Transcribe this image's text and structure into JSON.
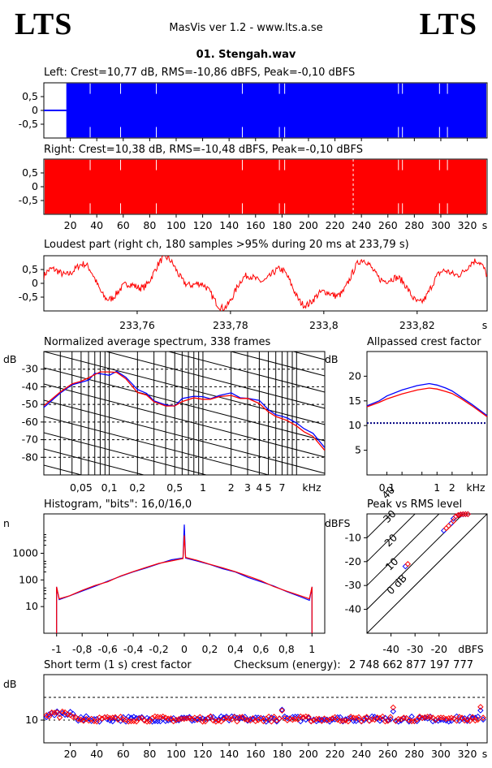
{
  "header": {
    "logo_left": "LTS",
    "logo_right": "LTS",
    "app_title": "MasVis ver 1.2 - www.lts.a.se",
    "file_name": "01. Stengah.wav"
  },
  "colors": {
    "left_channel": "#0000ff",
    "right_channel": "#ff0000",
    "reference_line": "#000080"
  },
  "chart_data": [
    {
      "id": "left",
      "type": "area",
      "title": "Left: Crest=10,77 dB, RMS=-10,86 dBFS, Peak=-0,10 dBFS",
      "ytick_labels": [
        "0,5",
        "0",
        "-0,5"
      ],
      "yticks": [
        0.5,
        0,
        -0.5
      ],
      "ylim": [
        -1,
        1
      ],
      "xlim": [
        0,
        335
      ],
      "signal_start_s": 17
    },
    {
      "id": "right",
      "type": "area",
      "title": "Right: Crest=10,38 dB, RMS=-10,48 dBFS, Peak=-0,10 dBFS",
      "ytick_labels": [
        "0,5",
        "0",
        "-0,5"
      ],
      "yticks": [
        0.5,
        0,
        -0.5
      ],
      "ylim": [
        -1,
        1
      ],
      "xlim": [
        0,
        335
      ],
      "marker_s": 233.79,
      "xtick_labels": [
        "20",
        "40",
        "60",
        "80",
        "100",
        "120",
        "140",
        "160",
        "180",
        "200",
        "220",
        "240",
        "260",
        "280",
        "300",
        "320",
        "s"
      ]
    },
    {
      "id": "loudest",
      "type": "line",
      "title": "Loudest part (right ch, 180 samples >95% during 20 ms at 233,79 s)",
      "xlim": [
        233.74,
        233.835
      ],
      "ylim": [
        -1,
        1
      ],
      "ytick_labels": [
        "0,5",
        "0",
        "-0,5"
      ],
      "yticks": [
        0.5,
        0,
        -0.5
      ],
      "xticks": [
        233.76,
        233.78,
        233.8,
        233.82
      ],
      "xtick_labels": [
        "233,76",
        "233,78",
        "233,8",
        "233,82",
        "s"
      ]
    },
    {
      "id": "spectrum",
      "type": "line",
      "title": "Normalized average spectrum, 338 frames",
      "ylabel": "dB",
      "ylim": [
        -90,
        -20
      ],
      "yticks": [
        -30,
        -40,
        -50,
        -60,
        -70,
        -80
      ],
      "ytick_labels": [
        "-30",
        "-40",
        "-50",
        "-60",
        "-70",
        "-80"
      ],
      "xscale": "log",
      "xlim": [
        0.02,
        20
      ],
      "xticks": [
        0.05,
        0.1,
        0.2,
        0.5,
        1,
        2,
        3,
        4,
        5,
        7
      ],
      "xtick_labels": [
        "0,05",
        "0,1",
        "0,2",
        "0,5",
        "1",
        "2",
        "3",
        "4",
        "5",
        "7",
        "kHz"
      ],
      "x": [
        0.02,
        0.03,
        0.04,
        0.05,
        0.06,
        0.07,
        0.08,
        0.1,
        0.12,
        0.15,
        0.2,
        0.25,
        0.3,
        0.4,
        0.5,
        0.6,
        0.8,
        1,
        1.2,
        1.5,
        2,
        2.5,
        3,
        4,
        5,
        6,
        7,
        8,
        10,
        12,
        15,
        20
      ],
      "series": [
        {
          "values": [
            -52,
            -44,
            -39,
            -38,
            -36,
            -33,
            -32,
            -33,
            -31,
            -35,
            -42,
            -44,
            -48,
            -50,
            -51,
            -47,
            -45,
            -46,
            -47,
            -45,
            -44,
            -46,
            -46,
            -48,
            -53,
            -56,
            -57,
            -58,
            -60,
            -64,
            -67,
            -75
          ]
        },
        {
          "values": [
            -51,
            -43,
            -38,
            -37,
            -35,
            -33,
            -31,
            -32,
            -32,
            -36,
            -43,
            -45,
            -49,
            -51,
            -51,
            -48,
            -46,
            -47,
            -47,
            -45,
            -45,
            -47,
            -47,
            -49,
            -54,
            -57,
            -58,
            -59,
            -62,
            -65,
            -68,
            -76
          ]
        }
      ]
    },
    {
      "id": "crest",
      "type": "line",
      "title": "Allpassed crest factor",
      "ylabel": "dB",
      "ylim": [
        0,
        25
      ],
      "yticks": [
        5,
        10,
        15,
        20
      ],
      "ytick_labels": [
        "5",
        "10",
        "15",
        "20"
      ],
      "xscale": "log",
      "xlim": [
        0.04,
        10
      ],
      "xticks": [
        0.1,
        1,
        2
      ],
      "xtick_labels": [
        "0,1",
        "1",
        "2",
        "kHz"
      ],
      "reference_db": 10.5,
      "x": [
        0.04,
        0.07,
        0.1,
        0.2,
        0.4,
        0.7,
        1,
        1.5,
        2,
        3,
        5,
        10
      ],
      "series": [
        {
          "values": [
            14,
            15,
            16,
            17.2,
            18.1,
            18.5,
            18.2,
            17.6,
            17,
            15.8,
            14.3,
            12
          ]
        },
        {
          "values": [
            13.8,
            14.7,
            15.4,
            16.4,
            17.2,
            17.6,
            17.4,
            16.9,
            16.5,
            15.5,
            14,
            11.8
          ]
        }
      ]
    },
    {
      "id": "histogram",
      "type": "line",
      "title": "Histogram, \"bits\": 16,0/16,0",
      "ylabel": "n",
      "yscale": "log",
      "ylim": [
        1,
        30000
      ],
      "yticks": [
        10,
        100,
        1000
      ],
      "ytick_labels": [
        "10",
        "100",
        "1000"
      ],
      "xlim": [
        -1.1,
        1.1
      ],
      "xticks": [
        -1,
        -0.8,
        -0.6,
        -0.4,
        -0.2,
        0,
        0.2,
        0.4,
        0.6,
        0.8,
        1
      ],
      "xtick_labels": [
        "-1",
        "-0,8",
        "-0,6",
        "-0,4",
        "-0,2",
        "0",
        "0,2",
        "0,4",
        "0,6",
        "0,8",
        "1"
      ],
      "x": [
        -0.98,
        -0.9,
        -0.8,
        -0.7,
        -0.6,
        -0.5,
        -0.4,
        -0.3,
        -0.2,
        -0.1,
        -0.01,
        0,
        0.01,
        0.1,
        0.2,
        0.3,
        0.4,
        0.5,
        0.6,
        0.7,
        0.8,
        0.9,
        0.98
      ],
      "series": [
        {
          "values": [
            18,
            25,
            38,
            58,
            88,
            130,
            190,
            280,
            390,
            540,
            650,
            12000,
            650,
            540,
            390,
            280,
            190,
            130,
            88,
            58,
            38,
            25,
            18
          ]
        },
        {
          "values": [
            19,
            26,
            40,
            60,
            90,
            135,
            195,
            285,
            395,
            545,
            660,
            5000,
            660,
            545,
            395,
            285,
            195,
            135,
            90,
            60,
            40,
            26,
            19
          ]
        }
      ],
      "edge_spike_value": 55
    },
    {
      "id": "peak_vs_rms",
      "type": "scatter",
      "title": "Peak vs RMS level",
      "ylabel": "dBFS",
      "xlabel": "dBFS",
      "xlim": [
        -50,
        0
      ],
      "ylim": [
        -50,
        0
      ],
      "yticks": [
        -10,
        -20,
        -30,
        -40
      ],
      "ytick_labels": [
        "-10",
        "-20",
        "-30",
        "-40"
      ],
      "xticks": [
        -40,
        -30,
        -20
      ],
      "xtick_labels": [
        "-40",
        "-30",
        "-20",
        "dBFS"
      ],
      "crest_lines": [
        0,
        10,
        20,
        30,
        40
      ],
      "crest_labels": [
        "0 dB",
        "10",
        "20",
        "30",
        "40"
      ],
      "series": [
        {
          "x": [
            -34,
            -18,
            -15,
            -14,
            -13,
            -12,
            -11,
            -10,
            -9,
            -8
          ],
          "y": [
            -22,
            -7,
            -4,
            -2,
            -1,
            -0.5,
            -0.3,
            -0.2,
            -0.1,
            -0.1
          ]
        },
        {
          "x": [
            -33,
            -17,
            -16,
            -14,
            -13,
            -12,
            -11,
            -10,
            -9,
            -8
          ],
          "y": [
            -21,
            -6,
            -5,
            -3,
            -1,
            -0.5,
            -0.2,
            -0.1,
            -0.1,
            -0.1
          ]
        }
      ]
    },
    {
      "id": "short_term_crest",
      "type": "scatter",
      "title": "Short term (1 s) crest factor",
      "checksum_label": "Checksum (energy):",
      "checksum_value": "2 748 662 877 197 777",
      "ylabel": "dB",
      "ylim": [
        0,
        30
      ],
      "yticks": [
        10
      ],
      "ytick_labels": [
        "10"
      ],
      "xlim": [
        0,
        335
      ],
      "reference_db": 20,
      "xtick_labels": [
        "20",
        "40",
        "60",
        "80",
        "100",
        "120",
        "140",
        "160",
        "180",
        "200",
        "220",
        "240",
        "260",
        "280",
        "300",
        "320",
        "s"
      ]
    }
  ]
}
